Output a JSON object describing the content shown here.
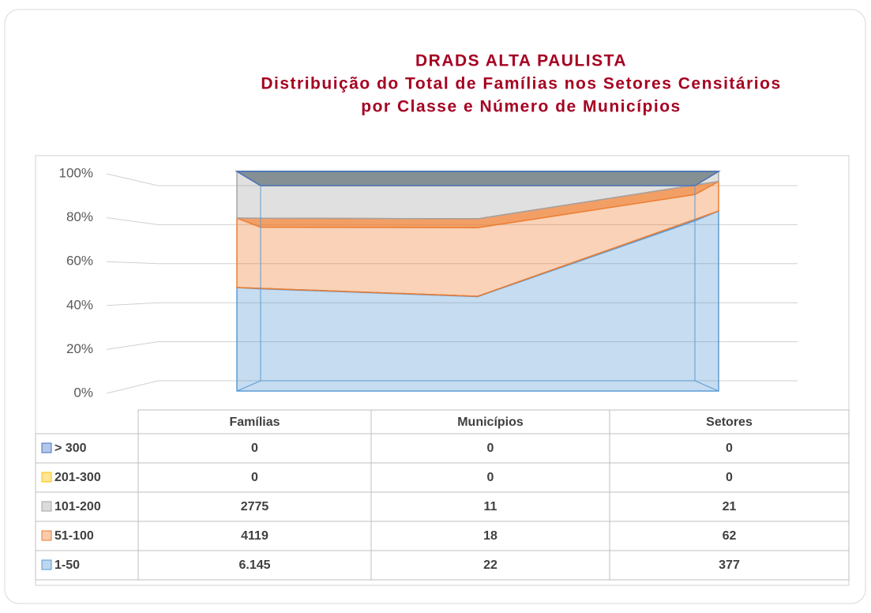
{
  "chart_data": {
    "type": "area3d",
    "title_lines": [
      "DRADS ALTA PAULISTA",
      "Distribuição do Total de Famílias nos Setores Censitários",
      "por Classe e Número de Municípios"
    ],
    "stacked_percent": true,
    "categories": [
      "Famílias",
      "Municípios",
      "Setores"
    ],
    "series": [
      {
        "name": "> 300",
        "color": "#4472c4",
        "values": [
          0,
          0,
          0
        ]
      },
      {
        "name": "201-300",
        "color": "#ffc000",
        "values": [
          0,
          0,
          0
        ]
      },
      {
        "name": "101-200",
        "color": "#a5a5a5",
        "values": [
          2775,
          11,
          21
        ]
      },
      {
        "name": "51-100",
        "color": "#ed7d31",
        "values": [
          4119,
          18,
          62
        ]
      },
      {
        "name": "1-50",
        "color": "#5b9bd5",
        "values": [
          6145,
          22,
          377
        ],
        "value_labels": [
          "6.145",
          "22",
          "377"
        ]
      }
    ],
    "ylim": [
      0,
      100
    ],
    "yticks": [
      {
        "value": 0,
        "label": "0%"
      },
      {
        "value": 20,
        "label": "20%"
      },
      {
        "value": 40,
        "label": "40%"
      },
      {
        "value": 60,
        "label": "60%"
      },
      {
        "value": 80,
        "label": "80%"
      },
      {
        "value": 100,
        "label": "100%"
      }
    ],
    "grid": true,
    "data_table": true
  }
}
